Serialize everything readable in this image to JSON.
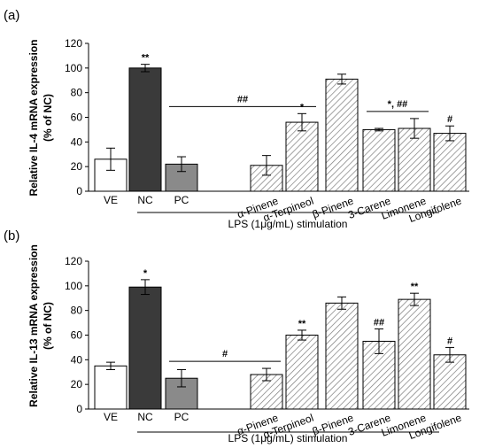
{
  "chart_data": [
    {
      "type": "bar",
      "panel_label": "(a)",
      "ylabel_line1": "Relative IL-4 mRNA expression",
      "ylabel_line2": "(% of NC)",
      "ylim": [
        0,
        120
      ],
      "yticks": [
        0,
        20,
        40,
        60,
        80,
        100,
        120
      ],
      "categories": [
        "VE",
        "NC",
        "PC",
        "α-Pinene",
        "α-Terpineol",
        "β-Pinene",
        "3-Carene",
        "Limonene",
        "Longifolene"
      ],
      "values": [
        26,
        100,
        22,
        21,
        56,
        91,
        50,
        51,
        47
      ],
      "errors": [
        9,
        3,
        6,
        8,
        7,
        4,
        1,
        8,
        6
      ],
      "fills": [
        "white",
        "#3a3a3a",
        "#8a8a8a",
        "hatch",
        "hatch",
        "hatch",
        "hatch",
        "hatch",
        "hatch"
      ],
      "annotations": [
        {
          "index": 1,
          "text": "**"
        },
        {
          "index": 4,
          "text": "*"
        },
        {
          "index": 8,
          "text": "#"
        }
      ],
      "brackets": [
        {
          "from": 2,
          "to": 4,
          "text": "##"
        },
        {
          "from": 6,
          "to": 7,
          "text": "*, ##"
        }
      ],
      "stimulation_label": "LPS (1μg/mL) stimulation"
    },
    {
      "type": "bar",
      "panel_label": "(b)",
      "ylabel_line1": "Relative IL-13 mRNA expression",
      "ylabel_line2": "(% of NC)",
      "ylim": [
        0,
        120
      ],
      "yticks": [
        0,
        20,
        40,
        60,
        80,
        100,
        120
      ],
      "categories": [
        "VE",
        "NC",
        "PC",
        "α-Pinene",
        "α-Terpineol",
        "β-Pinene",
        "3-Carene",
        "Limonene",
        "Longifolene"
      ],
      "values": [
        35,
        99,
        25,
        28,
        60,
        86,
        55,
        89,
        44
      ],
      "errors": [
        3,
        6,
        7,
        5,
        4,
        5,
        10,
        5,
        6
      ],
      "fills": [
        "white",
        "#3a3a3a",
        "#8a8a8a",
        "hatch",
        "hatch",
        "hatch",
        "hatch",
        "hatch",
        "hatch"
      ],
      "annotations": [
        {
          "index": 1,
          "text": "*"
        },
        {
          "index": 4,
          "text": "**"
        },
        {
          "index": 6,
          "text": "##"
        },
        {
          "index": 7,
          "text": "**"
        },
        {
          "index": 8,
          "text": "#"
        }
      ],
      "brackets": [
        {
          "from": 2,
          "to": 3,
          "text": "#"
        }
      ],
      "stimulation_label": "LPS (1μg/mL) stimulation"
    }
  ]
}
